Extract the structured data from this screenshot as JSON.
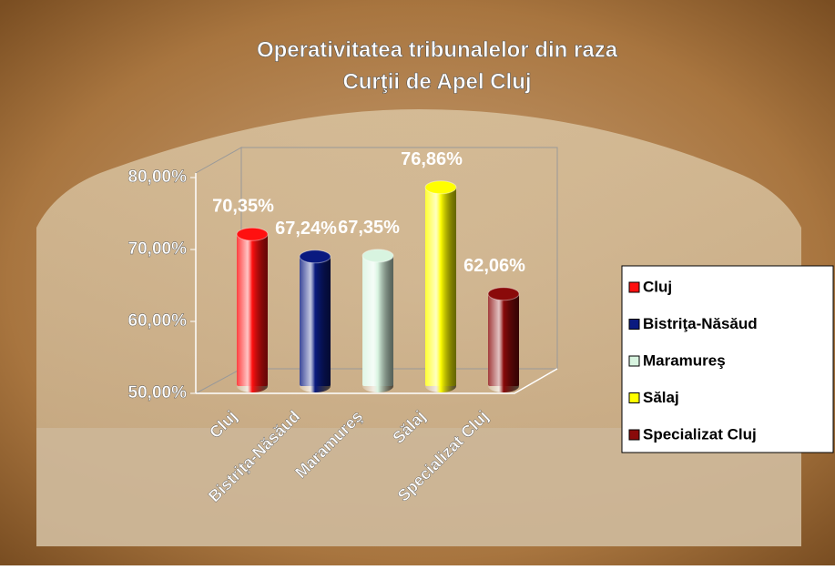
{
  "chart_data": {
    "type": "bar3d",
    "title": "Operativitatea tribunalelor din raza",
    "subtitle": "Curţii de Apel Cluj",
    "categories": [
      "Cluj",
      "Bistriţa-Năsăud",
      "Maramureş",
      "Sălaj",
      "Specializat Cluj"
    ],
    "values": [
      70.35,
      67.24,
      67.35,
      76.86,
      62.06
    ],
    "value_labels": [
      "70,35%",
      "67,24%",
      "67,35%",
      "76,86%",
      "62,06%"
    ],
    "colors": [
      "#ff1010",
      "#0a1a80",
      "#d8f4e0",
      "#ffff00",
      "#8a0a0a"
    ],
    "ylim": [
      50,
      80
    ],
    "yticks": [
      {
        "value": 50,
        "label": "50,00%"
      },
      {
        "value": 60,
        "label": "60,00%"
      },
      {
        "value": 70,
        "label": "70,00%"
      },
      {
        "value": 80,
        "label": "80,00%"
      }
    ],
    "legend": "right"
  }
}
